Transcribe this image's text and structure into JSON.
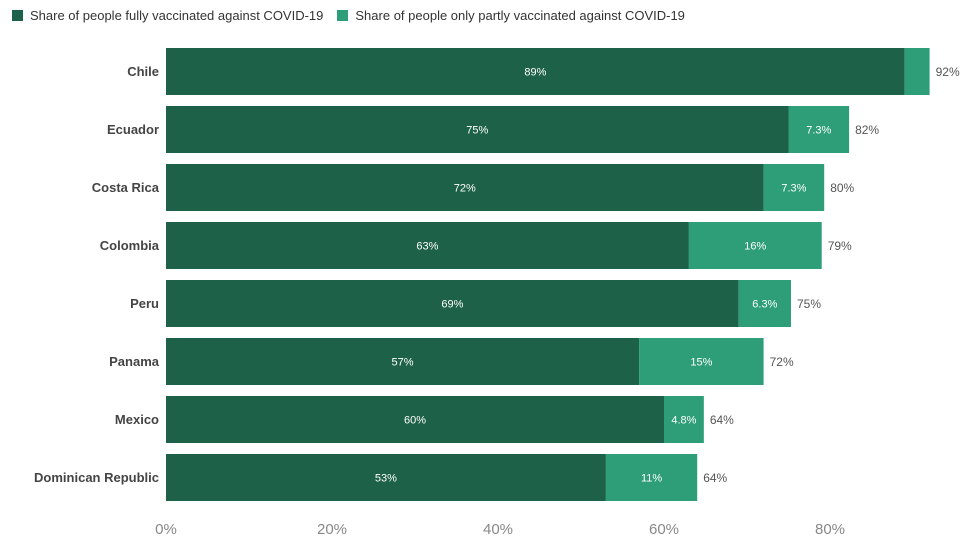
{
  "chart_data": {
    "type": "bar",
    "orientation": "horizontal",
    "stacked": true,
    "categories": [
      "Chile",
      "Ecuador",
      "Costa Rica",
      "Colombia",
      "Peru",
      "Panama",
      "Mexico",
      "Dominican Republic"
    ],
    "series": [
      {
        "name": "Share of people fully vaccinated against COVID-19",
        "color": "#1e6149",
        "values": [
          89,
          75,
          72,
          63,
          69,
          57,
          60,
          53
        ],
        "labels": [
          "89%",
          "75%",
          "72%",
          "63%",
          "69%",
          "57%",
          "60%",
          "53%"
        ]
      },
      {
        "name": "Share of people only partly vaccinated against COVID-19",
        "color": "#2e9e78",
        "values": [
          3,
          7.3,
          7.3,
          16,
          6.3,
          15,
          4.8,
          11
        ],
        "labels": [
          "",
          "7.3%",
          "7.3%",
          "16%",
          "6.3%",
          "15%",
          "4.8%",
          "11%"
        ]
      }
    ],
    "totals": [
      "92%",
      "82%",
      "80%",
      "79%",
      "75%",
      "72%",
      "64%",
      "64%"
    ],
    "xlim": [
      0,
      92
    ],
    "xticks": [
      0,
      20,
      40,
      60,
      80
    ],
    "xtick_labels": [
      "0%",
      "20%",
      "40%",
      "60%",
      "80%"
    ],
    "legend_position": "top-left",
    "grid": false
  }
}
